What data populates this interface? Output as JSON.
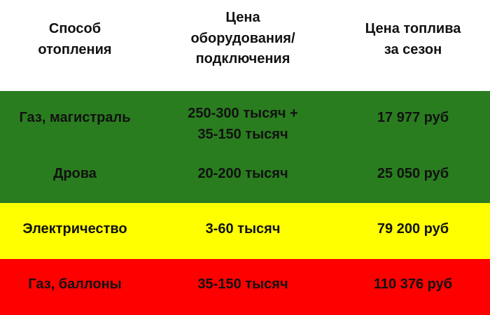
{
  "chart_data": {
    "type": "table",
    "columns": [
      "Способ\nотопления",
      "Цена\nоборудования/\nподключения",
      "Цена топлива\nза сезон"
    ],
    "rows": [
      {
        "cells": [
          "Газ, магистраль",
          "250-300 тысяч +\n35-150 тысяч",
          "17 977 руб"
        ],
        "color": "#2a7d1f"
      },
      {
        "cells": [
          "Дрова",
          "20-200 тысяч",
          "25 050 руб"
        ],
        "color": "#2a7d1f"
      },
      {
        "cells": [
          "Электричество",
          "3-60 тысяч",
          "79 200 руб"
        ],
        "color": "#ffff00"
      },
      {
        "cells": [
          "Газ, баллоны",
          "35-150 тысяч",
          "110 376 руб"
        ],
        "color": "#ff0000"
      }
    ]
  }
}
